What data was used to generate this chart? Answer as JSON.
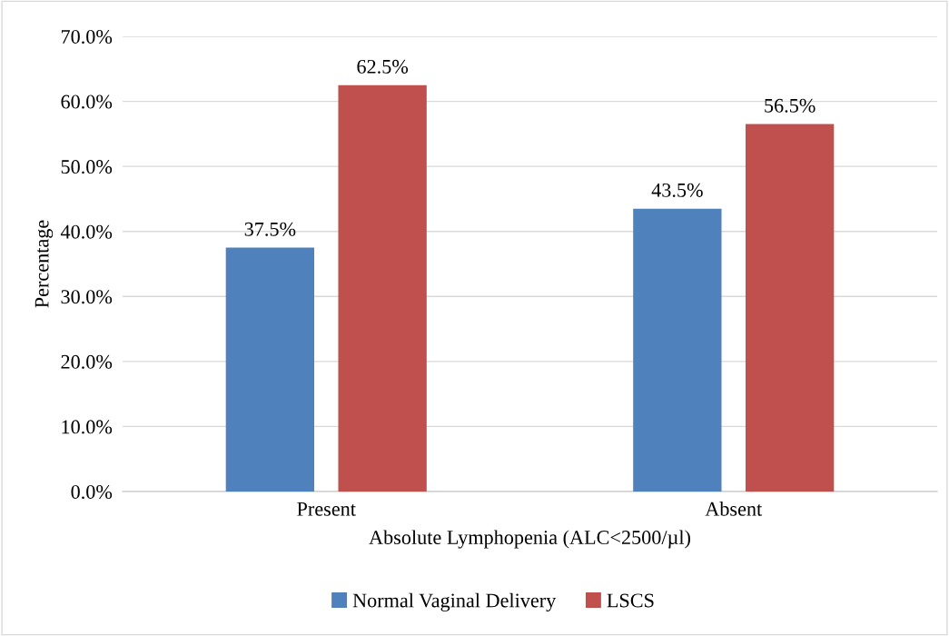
{
  "chart_data": {
    "type": "bar",
    "xlabel": "Absolute Lymphopenia (ALC<2500/µl)",
    "ylabel": "Percentage",
    "categories": [
      "Present",
      "Absent"
    ],
    "series": [
      {
        "name": "Normal Vaginal Delivery",
        "color": "#4f81bd",
        "values": [
          37.5,
          43.5
        ],
        "value_labels": [
          "37.5%",
          "43.5%"
        ]
      },
      {
        "name": "LSCS",
        "color": "#c0504d",
        "values": [
          62.5,
          56.5
        ],
        "value_labels": [
          "62.5%",
          "56.5%"
        ]
      }
    ],
    "ylim": [
      0,
      70
    ],
    "yticks": [
      {
        "value": 0,
        "label": "0.0%"
      },
      {
        "value": 10,
        "label": "10.0%"
      },
      {
        "value": 20,
        "label": "20.0%"
      },
      {
        "value": 30,
        "label": "30.0%"
      },
      {
        "value": 40,
        "label": "40.0%"
      },
      {
        "value": 50,
        "label": "50.0%"
      },
      {
        "value": 60,
        "label": "60.0%"
      },
      {
        "value": 70,
        "label": "70.0%"
      }
    ],
    "grid": "y",
    "legend": "bottom"
  }
}
